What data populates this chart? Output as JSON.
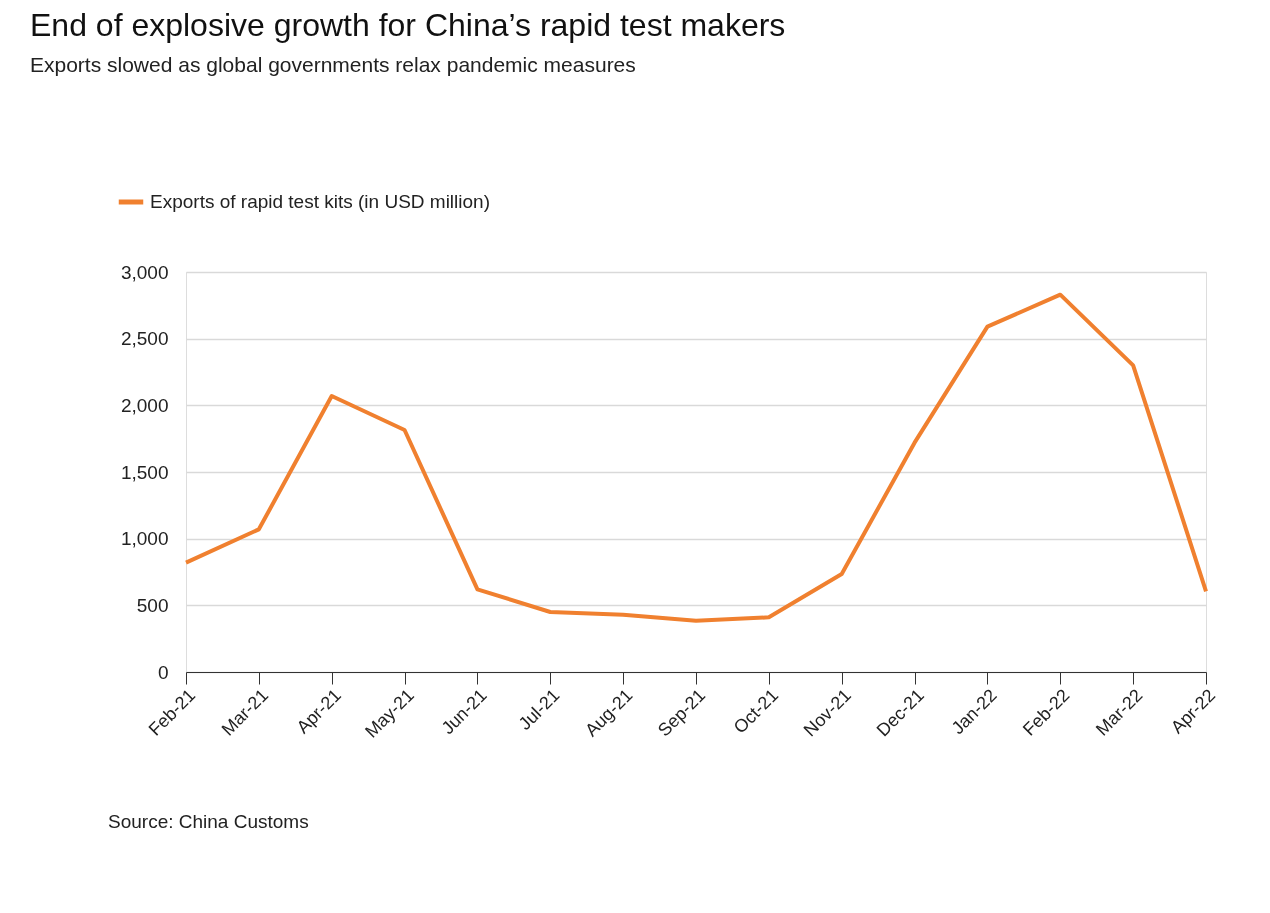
{
  "chart_data": {
    "type": "line",
    "title": "End of explosive growth for China’s rapid test makers",
    "subtitle": "Exports slowed as global governments relax pandemic measures",
    "categories": [
      "Feb-21",
      "Mar-21",
      "Apr-21",
      "May-21",
      "Jun-21",
      "Jul-21",
      "Aug-21",
      "Sep-21",
      "Oct-21",
      "Nov-21",
      "Dec-21",
      "Jan-22",
      "Feb-22",
      "Mar-22",
      "Apr-22"
    ],
    "series": [
      {
        "name": "Exports of rapid test kits (in USD million)",
        "color": "#f0802f",
        "values": [
          820,
          1070,
          2070,
          1815,
          620,
          450,
          430,
          385,
          410,
          735,
          1720,
          2590,
          2830,
          2300,
          605
        ]
      }
    ],
    "ylim": [
      0,
      3000
    ],
    "yticks": [
      {
        "value": 0,
        "label": "0"
      },
      {
        "value": 500,
        "label": "500"
      },
      {
        "value": 1000,
        "label": "1,000"
      },
      {
        "value": 1500,
        "label": "1,500"
      },
      {
        "value": 2000,
        "label": "2,000"
      },
      {
        "value": 2500,
        "label": "2,500"
      },
      {
        "value": 3000,
        "label": "3,000"
      }
    ],
    "grid": "y",
    "legend": "top left",
    "marker": "none",
    "line_style": "solid",
    "annotations": [
      "Source: China Customs"
    ]
  }
}
